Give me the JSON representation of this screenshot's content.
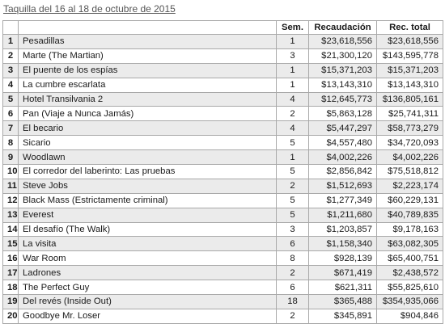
{
  "caption": "Taquilla del 16 al 18 de octubre de 2015",
  "columns": [
    "",
    "",
    "Sem.",
    "Recaudación",
    "Rec. total"
  ],
  "rows": [
    {
      "rank": "1",
      "title": "Pesadillas",
      "weeks": "1",
      "gross": "$23,618,556",
      "total": "$23,618,556"
    },
    {
      "rank": "2",
      "title": "Marte (The Martian)",
      "weeks": "3",
      "gross": "$21,300,120",
      "total": "$143,595,778"
    },
    {
      "rank": "3",
      "title": "El puente de los espías",
      "weeks": "1",
      "gross": "$15,371,203",
      "total": "$15,371,203"
    },
    {
      "rank": "4",
      "title": "La cumbre escarlata",
      "weeks": "1",
      "gross": "$13,143,310",
      "total": "$13,143,310"
    },
    {
      "rank": "5",
      "title": "Hotel Transilvania 2",
      "weeks": "4",
      "gross": "$12,645,773",
      "total": "$136,805,161"
    },
    {
      "rank": "6",
      "title": "Pan (Viaje a Nunca Jamás)",
      "weeks": "2",
      "gross": "$5,863,128",
      "total": "$25,741,311"
    },
    {
      "rank": "7",
      "title": "El becario",
      "weeks": "4",
      "gross": "$5,447,297",
      "total": "$58,773,279"
    },
    {
      "rank": "8",
      "title": "Sicario",
      "weeks": "5",
      "gross": "$4,557,480",
      "total": "$34,720,093"
    },
    {
      "rank": "9",
      "title": "Woodlawn",
      "weeks": "1",
      "gross": "$4,002,226",
      "total": "$4,002,226"
    },
    {
      "rank": "10",
      "title": "El corredor del laberinto: Las pruebas",
      "weeks": "5",
      "gross": "$2,856,842",
      "total": "$75,518,812"
    },
    {
      "rank": "11",
      "title": "Steve Jobs",
      "weeks": "2",
      "gross": "$1,512,693",
      "total": "$2,223,174"
    },
    {
      "rank": "12",
      "title": "Black Mass (Estrictamente criminal)",
      "weeks": "5",
      "gross": "$1,277,349",
      "total": "$60,229,131"
    },
    {
      "rank": "13",
      "title": "Everest",
      "weeks": "5",
      "gross": "$1,211,680",
      "total": "$40,789,835"
    },
    {
      "rank": "14",
      "title": "El desafío (The Walk)",
      "weeks": "3",
      "gross": "$1,203,857",
      "total": "$9,178,163"
    },
    {
      "rank": "15",
      "title": "La visita",
      "weeks": "6",
      "gross": "$1,158,340",
      "total": "$63,082,305"
    },
    {
      "rank": "16",
      "title": "War Room",
      "weeks": "8",
      "gross": "$928,139",
      "total": "$65,400,751"
    },
    {
      "rank": "17",
      "title": "Ladrones",
      "weeks": "2",
      "gross": "$671,419",
      "total": "$2,438,572"
    },
    {
      "rank": "18",
      "title": "The Perfect Guy",
      "weeks": "6",
      "gross": "$621,311",
      "total": "$55,825,610"
    },
    {
      "rank": "19",
      "title": "Del revés (Inside Out)",
      "weeks": "18",
      "gross": "$365,488",
      "total": "$354,935,066"
    },
    {
      "rank": "20",
      "title": "Goodbye Mr. Loser",
      "weeks": "2",
      "gross": "$345,891",
      "total": "$904,846"
    }
  ],
  "colors": {
    "border": "#a9a9a9",
    "alt_row": "#ebebeb",
    "caption": "#555555"
  }
}
